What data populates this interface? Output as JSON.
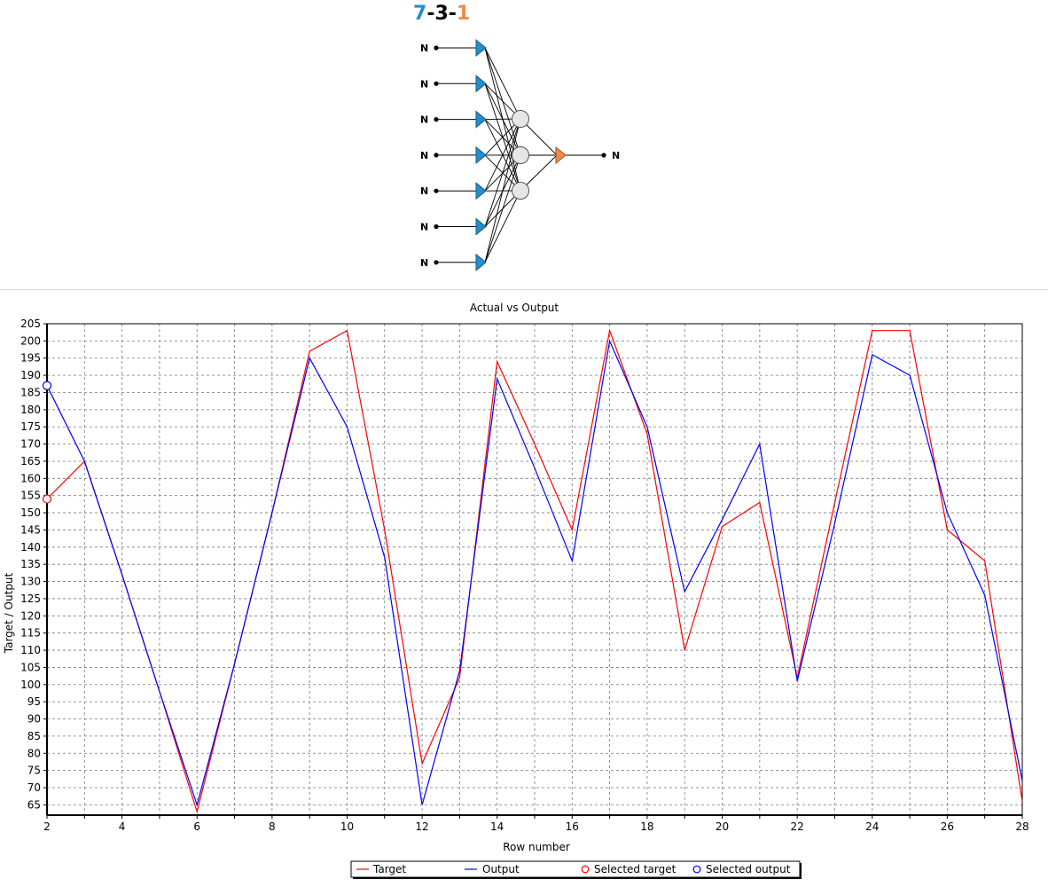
{
  "network": {
    "architecture": {
      "inputs": "7",
      "sep1": "-",
      "hidden": "3",
      "sep2": "-",
      "outputs": "1"
    },
    "input_labels": [
      "N",
      "N",
      "N",
      "N",
      "N",
      "N",
      "N"
    ],
    "output_labels": [
      "N"
    ],
    "colors": {
      "input": "#1f8fd1",
      "output": "#f08a4b",
      "hidden": "#e6e6e6"
    }
  },
  "chart_data": {
    "type": "line",
    "title": "Actual vs Output",
    "xlabel": "Row number",
    "ylabel": "Target / Output",
    "xlim": [
      2,
      28
    ],
    "ylim": [
      62,
      205
    ],
    "x_ticks": [
      2,
      4,
      6,
      8,
      10,
      12,
      14,
      16,
      18,
      20,
      22,
      24,
      26,
      28
    ],
    "y_ticks": [
      65,
      70,
      75,
      80,
      85,
      90,
      95,
      100,
      105,
      110,
      115,
      120,
      125,
      130,
      135,
      140,
      145,
      150,
      155,
      160,
      165,
      170,
      175,
      180,
      185,
      190,
      195,
      200,
      205
    ],
    "grid": true,
    "legend_position": "bottom",
    "x": [
      2,
      3,
      4,
      5,
      6,
      7,
      8,
      9,
      10,
      11,
      12,
      13,
      14,
      15,
      16,
      17,
      18,
      19,
      20,
      21,
      22,
      23,
      24,
      25,
      26,
      27,
      28
    ],
    "series": [
      {
        "name": "Target",
        "color": "#ff0000",
        "values": [
          154,
          165,
          132,
          98,
          63,
          106,
          150,
          197,
          203,
          145,
          77,
          102,
          194,
          170,
          145,
          203,
          173,
          110,
          146,
          153,
          102,
          153,
          203,
          203,
          145,
          136,
          66
        ]
      },
      {
        "name": "Output",
        "color": "#0000ff",
        "values": [
          187,
          165,
          132,
          98,
          65,
          106,
          150,
          195,
          175,
          137,
          65,
          104,
          189,
          163,
          136,
          200,
          175,
          127,
          148,
          170,
          101,
          147,
          196,
          190,
          150,
          126,
          72
        ]
      }
    ],
    "selected": [
      {
        "name": "Selected target",
        "color": "#ff0000",
        "x": 2,
        "y": 154
      },
      {
        "name": "Selected output",
        "color": "#0000ff",
        "x": 2,
        "y": 187
      }
    ]
  }
}
